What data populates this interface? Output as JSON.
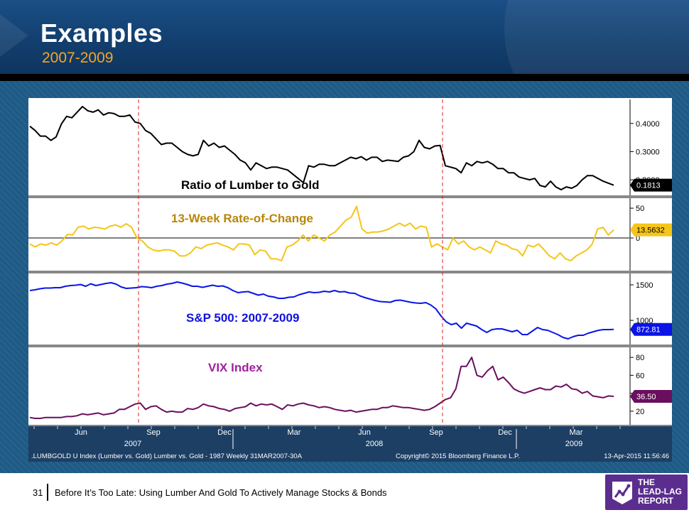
{
  "slide": {
    "title": "Examples",
    "subtitle": "2007-2009",
    "page_number": "31",
    "footer_text": "Before It’s Too Late: Using Lumber And Gold To Actively Manage Stocks & Bonds",
    "logo_lines": [
      "THE",
      "LEAD-LAG",
      "REPORT"
    ]
  },
  "colors": {
    "ratio": "#000000",
    "roc": "#f5c518",
    "spx": "#0a14e6",
    "vix": "#6a0f5e",
    "event_line": "#e02020"
  },
  "chart_data": [
    {
      "type": "line",
      "label": "Ratio of Lumber to Gold",
      "last_value_label": "0.1813",
      "y_ticks": [
        0.2,
        0.3,
        0.4
      ],
      "y_tick_labels": [
        "0.2000",
        "0.3000",
        "0.4000"
      ],
      "ylim": [
        0.155,
        0.475
      ],
      "values": [
        0.39,
        0.375,
        0.355,
        0.355,
        0.34,
        0.352,
        0.398,
        0.425,
        0.42,
        0.44,
        0.46,
        0.445,
        0.44,
        0.448,
        0.43,
        0.438,
        0.435,
        0.425,
        0.425,
        0.43,
        0.405,
        0.4,
        0.375,
        0.365,
        0.345,
        0.325,
        0.33,
        0.33,
        0.315,
        0.3,
        0.29,
        0.285,
        0.29,
        0.34,
        0.32,
        0.33,
        0.315,
        0.32,
        0.305,
        0.29,
        0.27,
        0.26,
        0.235,
        0.26,
        0.25,
        0.24,
        0.245,
        0.245,
        0.24,
        0.235,
        0.22,
        0.205,
        0.19,
        0.25,
        0.245,
        0.255,
        0.255,
        0.25,
        0.25,
        0.26,
        0.27,
        0.28,
        0.275,
        0.282,
        0.27,
        0.28,
        0.28,
        0.265,
        0.27,
        0.268,
        0.265,
        0.28,
        0.285,
        0.3,
        0.34,
        0.315,
        0.31,
        0.32,
        0.322,
        0.25,
        0.245,
        0.24,
        0.225,
        0.26,
        0.25,
        0.265,
        0.26,
        0.265,
        0.255,
        0.24,
        0.24,
        0.225,
        0.225,
        0.21,
        0.205,
        0.2,
        0.205,
        0.18,
        0.175,
        0.195,
        0.175,
        0.165,
        0.175,
        0.17,
        0.18,
        0.2,
        0.215,
        0.215,
        0.205,
        0.195,
        0.188,
        0.181
      ]
    },
    {
      "type": "line",
      "label": "13-Week Rate-of-Change",
      "last_value_label": "13.5632",
      "y_ticks": [
        0,
        50
      ],
      "y_tick_labels": [
        "0",
        "50"
      ],
      "zero_line": true,
      "ylim": [
        -50,
        62
      ],
      "values": [
        -10,
        -15,
        -10,
        -12,
        -8,
        -12,
        -5,
        6,
        5,
        18,
        20,
        15,
        18,
        17,
        15,
        20,
        22,
        18,
        24,
        18,
        0,
        -5,
        -15,
        -20,
        -22,
        -20,
        -20,
        -22,
        -30,
        -30,
        -25,
        -15,
        -18,
        -12,
        -10,
        -8,
        -12,
        -15,
        -20,
        -10,
        -10,
        -12,
        -28,
        -20,
        -22,
        -35,
        -35,
        -38,
        -15,
        -12,
        -5,
        5,
        -5,
        5,
        0,
        -5,
        5,
        10,
        20,
        30,
        35,
        53,
        15,
        8,
        10,
        10,
        12,
        15,
        20,
        25,
        20,
        25,
        15,
        20,
        18,
        -15,
        -10,
        -15,
        -20,
        0,
        -10,
        -5,
        -15,
        -20,
        -15,
        -20,
        -25,
        -5,
        -10,
        -12,
        -18,
        -20,
        -30,
        -12,
        -15,
        -10,
        -20,
        -30,
        -35,
        -25,
        -35,
        -38,
        -30,
        -25,
        -20,
        -10,
        15,
        18,
        5,
        13.5632
      ],
      "note": "indices roughly weekly from Mar 2007 to Apr 2009"
    },
    {
      "type": "line",
      "label": "S&P 500: 2007-2009",
      "last_value_label": "872.81",
      "y_ticks": [
        1000,
        1500
      ],
      "y_tick_labels": [
        "1000",
        "1500"
      ],
      "ylim": [
        700,
        1620
      ],
      "values": [
        1420,
        1430,
        1445,
        1455,
        1455,
        1460,
        1460,
        1480,
        1490,
        1495,
        1505,
        1480,
        1515,
        1490,
        1505,
        1520,
        1530,
        1510,
        1470,
        1450,
        1455,
        1460,
        1475,
        1470,
        1460,
        1480,
        1490,
        1510,
        1520,
        1540,
        1525,
        1505,
        1480,
        1480,
        1465,
        1480,
        1495,
        1480,
        1485,
        1460,
        1420,
        1390,
        1400,
        1405,
        1380,
        1355,
        1370,
        1340,
        1330,
        1310,
        1310,
        1325,
        1330,
        1360,
        1380,
        1400,
        1390,
        1395,
        1410,
        1400,
        1420,
        1400,
        1405,
        1385,
        1380,
        1345,
        1320,
        1300,
        1280,
        1265,
        1260,
        1255,
        1280,
        1285,
        1270,
        1255,
        1245,
        1240,
        1250,
        1215,
        1160,
        1060,
        980,
        940,
        960,
        890,
        960,
        940,
        920,
        870,
        830,
        870,
        880,
        880,
        860,
        840,
        860,
        800,
        800,
        850,
        900,
        870,
        860,
        830,
        800,
        760,
        740,
        770,
        790,
        790,
        820,
        840,
        860,
        870,
        870,
        872.81
      ]
    },
    {
      "type": "line",
      "label": "VIX Index",
      "last_value_label": "36.50",
      "y_ticks": [
        20,
        40,
        60,
        80
      ],
      "y_tick_labels": [
        "20",
        "40",
        "60",
        "80"
      ],
      "ylim": [
        8,
        88
      ],
      "values": [
        13,
        12,
        12,
        13,
        13,
        13,
        13,
        14,
        14,
        15,
        17,
        16,
        17,
        18,
        16,
        17,
        18,
        22,
        22,
        25,
        28,
        29,
        22,
        25,
        26,
        22,
        19,
        20,
        19,
        19,
        23,
        22,
        24,
        28,
        26,
        25,
        23,
        22,
        20,
        23,
        24,
        25,
        29,
        26,
        28,
        27,
        28,
        25,
        22,
        27,
        26,
        28,
        29,
        27,
        26,
        24,
        25,
        24,
        22,
        21,
        20,
        21,
        19,
        20,
        21,
        22,
        22,
        24,
        24,
        26,
        25,
        24,
        24,
        23,
        22,
        21,
        22,
        25,
        29,
        33,
        35,
        45,
        70,
        70,
        80,
        60,
        58,
        65,
        70,
        55,
        58,
        52,
        45,
        42,
        40,
        42,
        44,
        46,
        44,
        44,
        48,
        47,
        50,
        45,
        44,
        40,
        42,
        37,
        36,
        35,
        37,
        36.5
      ],
      "x_tick_labels": [
        "Jun",
        "Sep",
        "Dec",
        "Mar",
        "Jun",
        "Sep",
        "Dec",
        "Mar"
      ],
      "x_year_labels": [
        "2007",
        "2008",
        "2009"
      ]
    }
  ],
  "bottom_strip": {
    "left": ".LUMBGOLD U Index (Lumber vs. Gold) Lumber vs. Gold - 1987 Weekly 31MAR2007-30A",
    "center": "Copyright© 2015 Bloomberg Finance L.P.",
    "right": "13-Apr-2015 11:56:46"
  }
}
